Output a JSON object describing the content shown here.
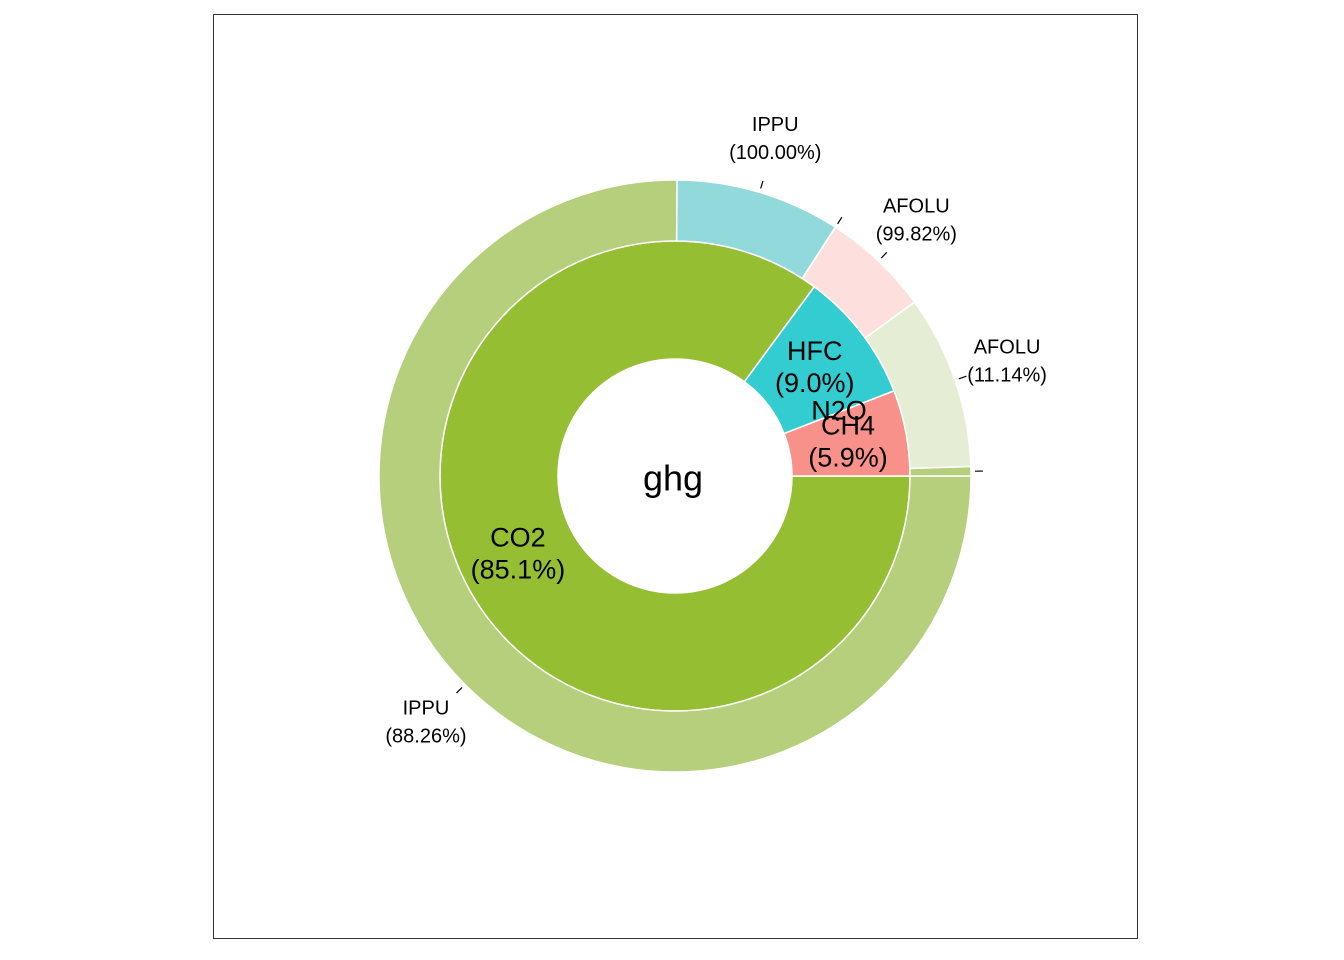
{
  "chart_data": {
    "type": "pie",
    "subtype": "sunburst-donut",
    "center_label": "ghg",
    "inner_ring": [
      {
        "label": "CO2",
        "pct_label": "(85.1%)",
        "value": 85.1,
        "color": "#95BE33"
      },
      {
        "label": "HFC",
        "pct_label": "(9.0%)",
        "value": 9.0,
        "color": "#33CCD1"
      },
      {
        "label": "N2O",
        "pct_label": "",
        "value": 0.0,
        "color": "#33CCD1"
      },
      {
        "label": "CH4",
        "pct_label": "(5.9%)",
        "value": 5.9,
        "color": "#F8918A"
      }
    ],
    "outer_ring": [
      {
        "label": "IPPU",
        "pct_label": "(88.26%)",
        "value": 75.11,
        "parent": "CO2",
        "color": "#B5CF7C"
      },
      {
        "label": "IPPU",
        "pct_label": "(100.00%)",
        "value": 9.0,
        "parent": "HFC",
        "color": "#92D9DB"
      },
      {
        "label": "",
        "pct_label": "",
        "value": 0.01,
        "parent": "N2O",
        "color": "#92D9DB"
      },
      {
        "label": "AFOLU",
        "pct_label": "(99.82%)",
        "value": 5.89,
        "parent": "CH4",
        "color": "#FDE0DD"
      },
      {
        "label": "AFOLU",
        "pct_label": "(11.14%)",
        "value": 9.48,
        "parent": "CO2",
        "color": "#E5EED5"
      },
      {
        "label": "",
        "pct_label": "",
        "value": 0.51,
        "parent": "CO2",
        "color": "#B5CF7C"
      }
    ]
  }
}
